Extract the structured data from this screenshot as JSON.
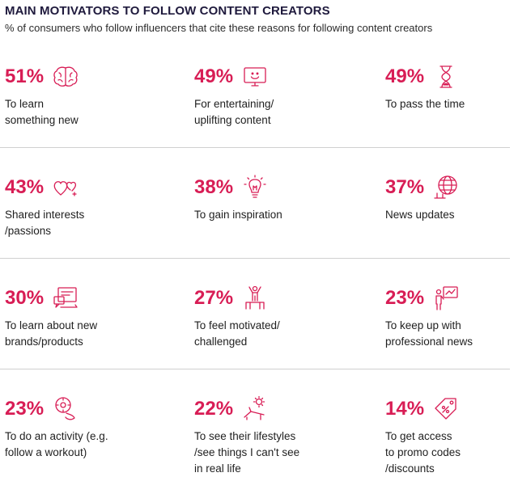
{
  "chart_data": {
    "type": "table",
    "title": "MAIN MOTIVATORS TO FOLLOW CONTENT CREATORS",
    "subtitle": "% of consumers who follow influencers that cite these reasons for following content creators",
    "items": [
      {
        "value": "51%",
        "label": "To learn\nsomething new",
        "icon": "brain-icon"
      },
      {
        "value": "49%",
        "label": "For entertaining/\nuplifting content",
        "icon": "smiley-screen-icon"
      },
      {
        "value": "49%",
        "label": "To pass the time",
        "icon": "hourglass-icon"
      },
      {
        "value": "43%",
        "label": "Shared interests\n/passions",
        "icon": "hearts-icon"
      },
      {
        "value": "38%",
        "label": "To gain inspiration",
        "icon": "lightbulb-icon"
      },
      {
        "value": "37%",
        "label": "News updates",
        "icon": "globe-icon"
      },
      {
        "value": "30%",
        "label": "To learn about new\nbrands/products",
        "icon": "laptop-chat-icon"
      },
      {
        "value": "27%",
        "label": "To feel motivated/\nchallenged",
        "icon": "podium-icon"
      },
      {
        "value": "23%",
        "label": "To keep up with\nprofessional news",
        "icon": "presenter-icon"
      },
      {
        "value": "23%",
        "label": "To do an activity (e.g.\nfollow a workout)",
        "icon": "workout-icon"
      },
      {
        "value": "22%",
        "label": "To see their lifestyles\n/see things I can't see\nin real life",
        "icon": "sunbed-icon"
      },
      {
        "value": "14%",
        "label": "To get access\nto promo codes\n/discounts",
        "icon": "discount-tag-icon"
      }
    ]
  },
  "colors": {
    "accent": "#d81d55",
    "title": "#1f1a3d"
  }
}
